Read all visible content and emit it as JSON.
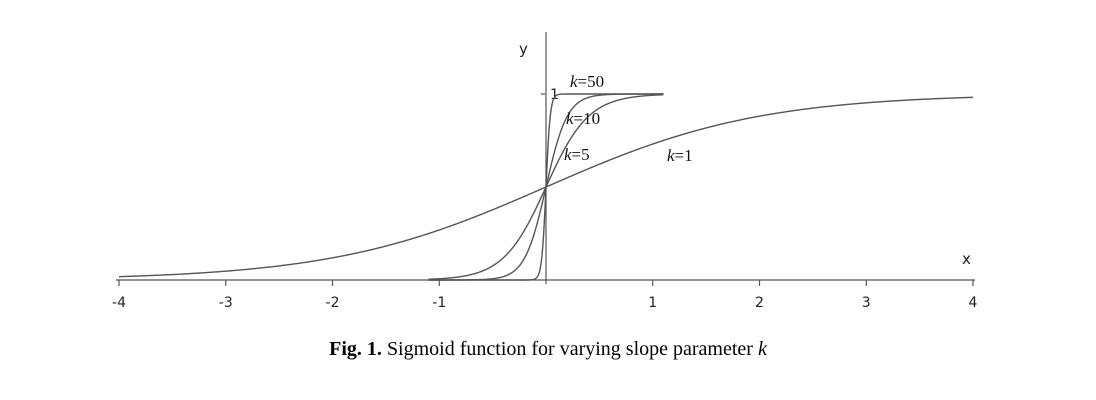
{
  "chart_data": {
    "type": "line",
    "title": "",
    "xlabel": "x",
    "ylabel": "y",
    "xlim": [
      -4,
      4
    ],
    "ylim": [
      0,
      1
    ],
    "x_ticks": [
      "-4",
      "-3",
      "-2",
      "-1",
      "1",
      "2",
      "3",
      "4"
    ],
    "x_tick_values": [
      -4,
      -3,
      -2,
      -1,
      1,
      2,
      3,
      4
    ],
    "y_ticks": [
      "1"
    ],
    "y_tick_values": [
      1
    ],
    "grid": false,
    "legend": "none",
    "function": "1/(1+exp(-k*x))",
    "series": [
      {
        "name": "k=1",
        "k": 1,
        "x_range": [
          -4,
          4
        ]
      },
      {
        "name": "k=5",
        "k": 5,
        "x_range": [
          -1.1,
          1.1
        ]
      },
      {
        "name": "k=10",
        "k": 10,
        "x_range": [
          -1.1,
          1.1
        ]
      },
      {
        "name": "k=50",
        "k": 50,
        "x_range": [
          -1.1,
          1.1
        ]
      }
    ],
    "labels": [
      {
        "italic": "k",
        "rest": "=50"
      },
      {
        "italic": "k",
        "rest": "=10"
      },
      {
        "italic": "k",
        "rest": "=5"
      },
      {
        "italic": "k",
        "rest": "=1"
      }
    ],
    "line_color": "#555555"
  },
  "caption": {
    "label": "Fig. 1.",
    "text": " Sigmoid function for varying slope parameter ",
    "symbol": "k"
  }
}
